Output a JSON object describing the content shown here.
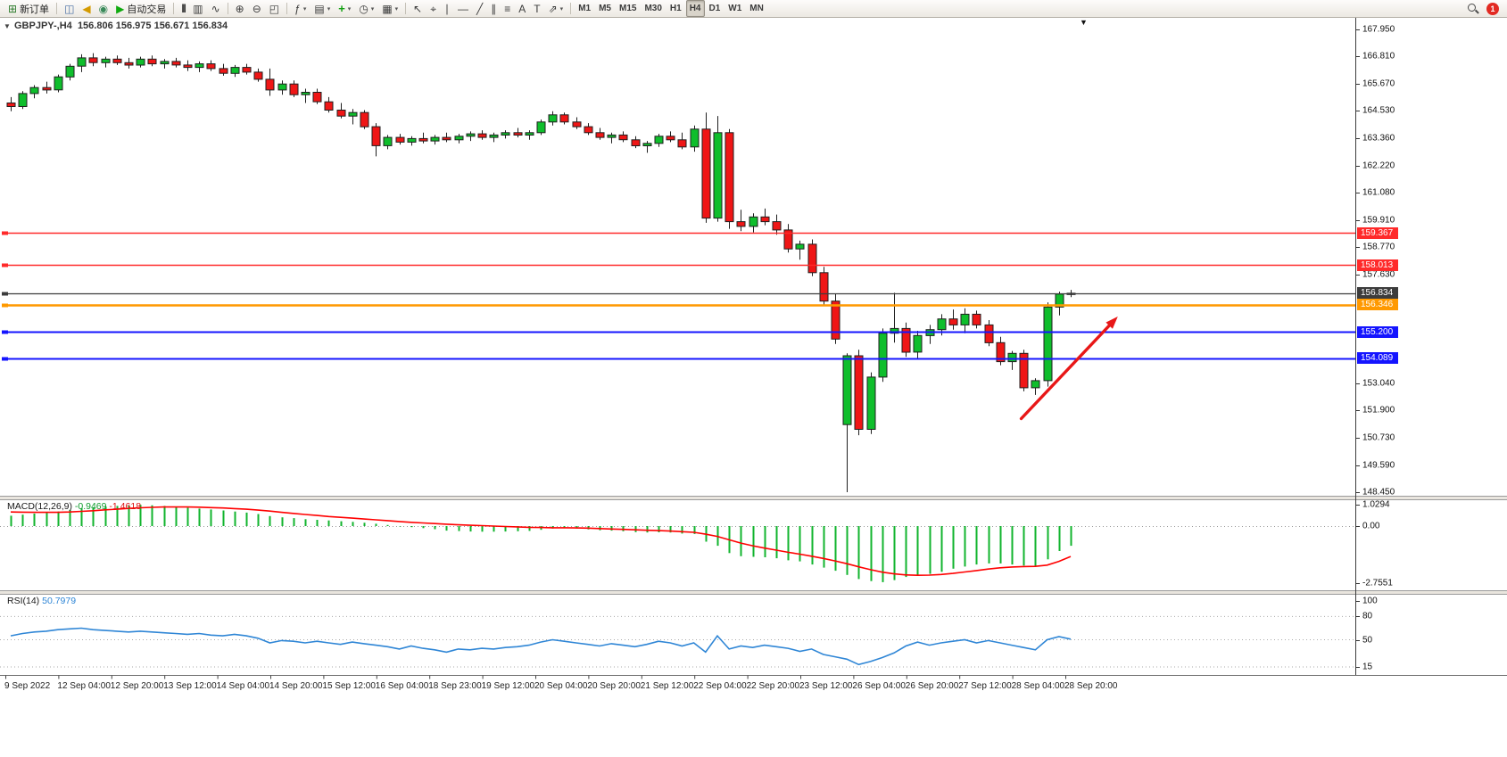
{
  "icons": {
    "collapse_glyph": "▼",
    "shift_glyph": "▼",
    "dropdown_glyph": "▾"
  },
  "toolbar": {
    "buttons": [
      {
        "name": "new-order-button",
        "glyph": "⊞",
        "glyph_color": "#2f7d2f",
        "label": "新订单"
      },
      {
        "sep": true
      },
      {
        "name": "charts-window-button",
        "glyph": "◫",
        "glyph_color": "#4a6fa5"
      },
      {
        "name": "alerts-horn-button",
        "glyph": "◀",
        "glyph_color": "#d49a00"
      },
      {
        "name": "signal-button",
        "glyph": "◉",
        "glyph_color": "#3a8a5a"
      },
      {
        "name": "autotrading-button",
        "glyph": "▶",
        "glyph_color": "#0faa0f",
        "label": "自动交易"
      },
      {
        "sep": true
      },
      {
        "name": "bar-chart-button",
        "glyph": "|||"
      },
      {
        "name": "candlestick-chart-button",
        "glyph": "▥"
      },
      {
        "name": "line-chart-button",
        "glyph": "∿"
      },
      {
        "sep": true
      },
      {
        "name": "zoom-in-button",
        "glyph": "⊕"
      },
      {
        "name": "zoom-out-button",
        "glyph": "⊖"
      },
      {
        "name": "tile-windows-button",
        "glyph": "◰"
      },
      {
        "sep": true
      },
      {
        "name": "indicators-button",
        "glyph": "ƒ",
        "dropdown": true
      },
      {
        "name": "objects-list-button",
        "glyph": "▤",
        "dropdown": true
      },
      {
        "name": "add-indicator-button",
        "glyph": "+",
        "glyph_color": "#12a012",
        "dropdown": true
      },
      {
        "name": "periods-button",
        "glyph": "◷",
        "dropdown": true
      },
      {
        "name": "templates-button",
        "glyph": "▦",
        "dropdown": true
      },
      {
        "sep": true
      },
      {
        "name": "cursor-button",
        "glyph": "↖"
      },
      {
        "name": "crosshair-button",
        "glyph": "⌖"
      },
      {
        "name": "vertical-line-button",
        "glyph": "∣"
      },
      {
        "name": "horizontal-line-button",
        "glyph": "―"
      },
      {
        "name": "trendline-button",
        "glyph": "╱"
      },
      {
        "name": "channel-button",
        "glyph": "∥"
      },
      {
        "name": "fibonacci-button",
        "glyph": "≡"
      },
      {
        "name": "text-button",
        "glyph": "A"
      },
      {
        "name": "text-label-button",
        "glyph": "T"
      },
      {
        "name": "arrows-button",
        "glyph": "⇗",
        "dropdown": true
      },
      {
        "sep": true
      }
    ],
    "timeframes": [
      "M1",
      "M5",
      "M15",
      "M30",
      "H1",
      "H4",
      "D1",
      "W1",
      "MN"
    ],
    "active_timeframe": "H4",
    "notification_badge": "1"
  },
  "chart": {
    "title": "GBPJPY-,H4",
    "ohlc_text": "156.806 156.975 156.671 156.834",
    "price_axis_labels": [
      "167.950",
      "166.810",
      "165.670",
      "164.530",
      "163.360",
      "162.220",
      "161.080",
      "159.910",
      "158.770",
      "157.630",
      "153.040",
      "151.900",
      "150.730",
      "149.590",
      "148.450"
    ],
    "macd_label": "MACD(12,26,9)",
    "macd_main": "-0.9469",
    "macd_signal": "-1.4618",
    "macd_scale_labels": [
      "1.0294",
      "0.00",
      "-2.7551"
    ],
    "rsi_label": "RSI(14)",
    "rsi_value": "50.7979",
    "rsi_scale_labels": [
      "100",
      "80",
      "50",
      "15"
    ]
  },
  "chart_data": {
    "type": "candlestick",
    "symbol": "GBPJPY-",
    "timeframe": "H4",
    "title": "GBPJPY-,H4",
    "current_bar": {
      "open": 156.806,
      "high": 156.975,
      "low": 156.671,
      "close": 156.834
    },
    "price_range": [
      148.45,
      167.95
    ],
    "candles": [
      [
        164.85,
        165.1,
        164.5,
        164.7
      ],
      [
        164.7,
        165.35,
        164.6,
        165.25
      ],
      [
        165.25,
        165.6,
        165.05,
        165.5
      ],
      [
        165.5,
        165.75,
        165.25,
        165.4
      ],
      [
        165.4,
        166.05,
        165.3,
        165.95
      ],
      [
        165.95,
        166.5,
        165.8,
        166.4
      ],
      [
        166.4,
        166.9,
        166.15,
        166.75
      ],
      [
        166.75,
        166.95,
        166.4,
        166.55
      ],
      [
        166.55,
        166.8,
        166.35,
        166.7
      ],
      [
        166.7,
        166.85,
        166.45,
        166.55
      ],
      [
        166.55,
        166.75,
        166.3,
        166.45
      ],
      [
        166.45,
        166.8,
        166.35,
        166.7
      ],
      [
        166.7,
        166.85,
        166.4,
        166.5
      ],
      [
        166.5,
        166.7,
        166.3,
        166.6
      ],
      [
        166.6,
        166.75,
        166.35,
        166.45
      ],
      [
        166.45,
        166.65,
        166.2,
        166.35
      ],
      [
        166.35,
        166.6,
        166.15,
        166.5
      ],
      [
        166.5,
        166.65,
        166.2,
        166.3
      ],
      [
        166.3,
        166.5,
        166.0,
        166.1
      ],
      [
        166.1,
        166.45,
        165.95,
        166.35
      ],
      [
        166.35,
        166.5,
        166.05,
        166.15
      ],
      [
        166.15,
        166.3,
        165.75,
        165.85
      ],
      [
        165.85,
        166.3,
        165.15,
        165.4
      ],
      [
        165.4,
        165.8,
        165.2,
        165.65
      ],
      [
        165.65,
        165.8,
        165.1,
        165.2
      ],
      [
        165.2,
        165.45,
        164.85,
        165.3
      ],
      [
        165.3,
        165.45,
        164.8,
        164.9
      ],
      [
        164.9,
        165.1,
        164.45,
        164.55
      ],
      [
        164.55,
        164.85,
        164.2,
        164.3
      ],
      [
        164.3,
        164.6,
        163.95,
        164.45
      ],
      [
        164.45,
        164.55,
        163.75,
        163.85
      ],
      [
        163.85,
        164.0,
        162.6,
        163.05
      ],
      [
        163.05,
        163.5,
        162.9,
        163.4
      ],
      [
        163.4,
        163.55,
        163.1,
        163.2
      ],
      [
        163.2,
        163.45,
        163.05,
        163.35
      ],
      [
        163.35,
        163.6,
        163.15,
        163.25
      ],
      [
        163.25,
        163.5,
        163.1,
        163.4
      ],
      [
        163.4,
        163.6,
        163.2,
        163.3
      ],
      [
        163.3,
        163.55,
        163.15,
        163.45
      ],
      [
        163.45,
        163.65,
        163.25,
        163.55
      ],
      [
        163.55,
        163.7,
        163.3,
        163.4
      ],
      [
        163.4,
        163.6,
        163.2,
        163.5
      ],
      [
        163.5,
        163.7,
        163.35,
        163.6
      ],
      [
        163.6,
        163.8,
        163.4,
        163.5
      ],
      [
        163.5,
        163.7,
        163.3,
        163.6
      ],
      [
        163.6,
        164.15,
        163.5,
        164.05
      ],
      [
        164.05,
        164.5,
        163.9,
        164.35
      ],
      [
        164.35,
        164.45,
        163.95,
        164.05
      ],
      [
        164.05,
        164.25,
        163.75,
        163.85
      ],
      [
        163.85,
        164.0,
        163.5,
        163.6
      ],
      [
        163.6,
        163.8,
        163.3,
        163.4
      ],
      [
        163.4,
        163.6,
        163.15,
        163.5
      ],
      [
        163.5,
        163.65,
        163.2,
        163.3
      ],
      [
        163.3,
        163.45,
        162.95,
        163.05
      ],
      [
        163.05,
        163.25,
        162.75,
        163.15
      ],
      [
        163.15,
        163.55,
        163.0,
        163.45
      ],
      [
        163.45,
        163.65,
        163.2,
        163.3
      ],
      [
        163.3,
        163.6,
        162.9,
        163.0
      ],
      [
        163.0,
        163.9,
        162.8,
        163.75
      ],
      [
        163.75,
        164.45,
        159.8,
        160.0
      ],
      [
        160.0,
        164.3,
        159.85,
        163.6
      ],
      [
        163.6,
        163.75,
        159.55,
        159.85
      ],
      [
        159.85,
        160.35,
        159.45,
        159.65
      ],
      [
        159.65,
        160.2,
        159.4,
        160.05
      ],
      [
        160.05,
        160.4,
        159.7,
        159.85
      ],
      [
        159.85,
        160.15,
        159.3,
        159.5
      ],
      [
        159.5,
        159.75,
        158.55,
        158.7
      ],
      [
        158.7,
        159.05,
        158.25,
        158.9
      ],
      [
        158.9,
        159.1,
        157.55,
        157.7
      ],
      [
        157.7,
        157.95,
        156.35,
        156.5
      ],
      [
        156.5,
        156.8,
        154.7,
        154.9
      ],
      [
        151.3,
        154.3,
        148.45,
        154.2
      ],
      [
        154.2,
        154.45,
        150.85,
        151.1
      ],
      [
        151.1,
        153.5,
        150.9,
        153.3
      ],
      [
        153.3,
        155.35,
        153.1,
        155.15
      ],
      [
        155.15,
        156.85,
        154.75,
        155.35
      ],
      [
        155.35,
        155.6,
        154.15,
        154.35
      ],
      [
        154.35,
        155.25,
        154.05,
        155.05
      ],
      [
        155.05,
        155.5,
        154.7,
        155.3
      ],
      [
        155.3,
        155.95,
        155.05,
        155.75
      ],
      [
        155.75,
        156.15,
        155.3,
        155.5
      ],
      [
        155.5,
        156.2,
        155.15,
        155.95
      ],
      [
        155.95,
        156.1,
        155.35,
        155.5
      ],
      [
        155.5,
        155.7,
        154.6,
        154.75
      ],
      [
        154.75,
        155.0,
        153.8,
        153.95
      ],
      [
        153.95,
        154.4,
        153.6,
        154.3
      ],
      [
        154.3,
        154.45,
        152.7,
        152.85
      ],
      [
        152.85,
        153.25,
        152.55,
        153.15
      ],
      [
        153.15,
        156.45,
        152.9,
        156.25
      ],
      [
        156.25,
        156.9,
        155.9,
        156.8
      ],
      [
        156.806,
        156.975,
        156.671,
        156.834
      ]
    ],
    "levels": [
      {
        "price": 159.367,
        "label": "159.367",
        "color": "#ff2a2a",
        "width": 1.4
      },
      {
        "price": 158.013,
        "label": "158.013",
        "color": "#ff2a2a",
        "width": 1.4
      },
      {
        "price": 156.834,
        "label": "156.834",
        "color": "#3c3c3c",
        "width": 1.2
      },
      {
        "price": 156.346,
        "label": "156.346",
        "color": "#ff9900",
        "width": 2.6
      },
      {
        "price": 155.2,
        "label": "155.200",
        "color": "#1414ff",
        "width": 2
      },
      {
        "price": 154.089,
        "label": "154.089",
        "color": "#1414ff",
        "width": 2
      }
    ],
    "arrow": {
      "from_index": 85.8,
      "from_price": 151.55,
      "to_index": 94.0,
      "to_price": 155.85,
      "color": "#e81717"
    },
    "macd": {
      "name": "MACD(12,26,9)",
      "current": {
        "main": -0.9469,
        "signal": -1.4618
      },
      "scale_range": [
        -2.7551,
        1.0294
      ],
      "histogram": [
        0.5,
        0.55,
        0.6,
        0.64,
        0.7,
        0.78,
        0.86,
        0.9,
        0.94,
        0.97,
        1.0,
        1.02,
        1.0,
        0.97,
        0.93,
        0.88,
        0.84,
        0.8,
        0.75,
        0.7,
        0.65,
        0.58,
        0.48,
        0.42,
        0.38,
        0.33,
        0.3,
        0.27,
        0.23,
        0.2,
        0.16,
        0.11,
        0.05,
        -0.02,
        -0.05,
        -0.1,
        -0.15,
        -0.22,
        -0.24,
        -0.26,
        -0.27,
        -0.27,
        -0.26,
        -0.25,
        -0.23,
        -0.18,
        -0.12,
        -0.1,
        -0.12,
        -0.16,
        -0.2,
        -0.22,
        -0.25,
        -0.29,
        -0.31,
        -0.3,
        -0.31,
        -0.36,
        -0.38,
        -0.75,
        -0.95,
        -1.3,
        -1.45,
        -1.48,
        -1.5,
        -1.55,
        -1.65,
        -1.7,
        -1.85,
        -2.0,
        -2.15,
        -2.35,
        -2.55,
        -2.65,
        -2.7,
        -2.6,
        -2.45,
        -2.4,
        -2.3,
        -2.2,
        -2.05,
        -1.95,
        -1.85,
        -1.8,
        -1.8,
        -1.85,
        -1.9,
        -1.95,
        -1.6,
        -1.2,
        -0.9469
      ],
      "signal": [
        0.68,
        0.67,
        0.66,
        0.66,
        0.66,
        0.68,
        0.71,
        0.74,
        0.78,
        0.81,
        0.85,
        0.88,
        0.9,
        0.92,
        0.92,
        0.92,
        0.91,
        0.89,
        0.87,
        0.84,
        0.81,
        0.77,
        0.72,
        0.66,
        0.61,
        0.56,
        0.51,
        0.46,
        0.42,
        0.38,
        0.34,
        0.3,
        0.26,
        0.22,
        0.18,
        0.15,
        0.12,
        0.09,
        0.06,
        0.04,
        0.02,
        0.0,
        -0.02,
        -0.04,
        -0.06,
        -0.07,
        -0.08,
        -0.08,
        -0.09,
        -0.1,
        -0.12,
        -0.14,
        -0.16,
        -0.18,
        -0.2,
        -0.22,
        -0.24,
        -0.27,
        -0.3,
        -0.39,
        -0.5,
        -0.66,
        -0.82,
        -0.95,
        -1.06,
        -1.16,
        -1.26,
        -1.35,
        -1.45,
        -1.56,
        -1.68,
        -1.81,
        -1.96,
        -2.1,
        -2.22,
        -2.3,
        -2.35,
        -2.37,
        -2.36,
        -2.33,
        -2.28,
        -2.21,
        -2.14,
        -2.07,
        -2.01,
        -1.97,
        -1.95,
        -1.94,
        -1.88,
        -1.7,
        -1.4618
      ]
    },
    "rsi": {
      "name": "RSI(14)",
      "current": 50.7979,
      "range": [
        0,
        100
      ],
      "levels": [
        80,
        50,
        15
      ],
      "values": [
        55,
        58,
        60,
        61,
        63,
        64,
        65,
        63,
        62,
        61,
        60,
        61,
        60,
        59,
        58,
        57,
        58,
        56,
        55,
        57,
        55,
        52,
        46,
        49,
        48,
        46,
        48,
        46,
        44,
        47,
        45,
        43,
        41,
        38,
        42,
        39,
        37,
        34,
        38,
        37,
        39,
        38,
        40,
        41,
        43,
        47,
        50,
        48,
        46,
        44,
        42,
        45,
        43,
        41,
        44,
        48,
        46,
        42,
        46,
        34,
        55,
        38,
        42,
        40,
        43,
        41,
        39,
        35,
        38,
        31,
        28,
        25,
        18,
        22,
        27,
        33,
        42,
        47,
        43,
        46,
        48,
        50,
        46,
        49,
        46,
        43,
        40,
        37,
        50,
        54,
        50.7979
      ]
    },
    "time_labels": [
      "9 Sep 2022",
      "12 Sep 04:00",
      "12 Sep 20:00",
      "13 Sep 12:00",
      "14 Sep 04:00",
      "14 Sep 20:00",
      "15 Sep 12:00",
      "16 Sep 04:00",
      "18 Sep 23:00",
      "19 Sep 12:00",
      "20 Sep 04:00",
      "20 Sep 20:00",
      "21 Sep 12:00",
      "22 Sep 04:00",
      "22 Sep 20:00",
      "23 Sep 12:00",
      "26 Sep 04:00",
      "26 Sep 20:00",
      "27 Sep 12:00",
      "28 Sep 04:00",
      "28 Sep 20:00"
    ]
  }
}
